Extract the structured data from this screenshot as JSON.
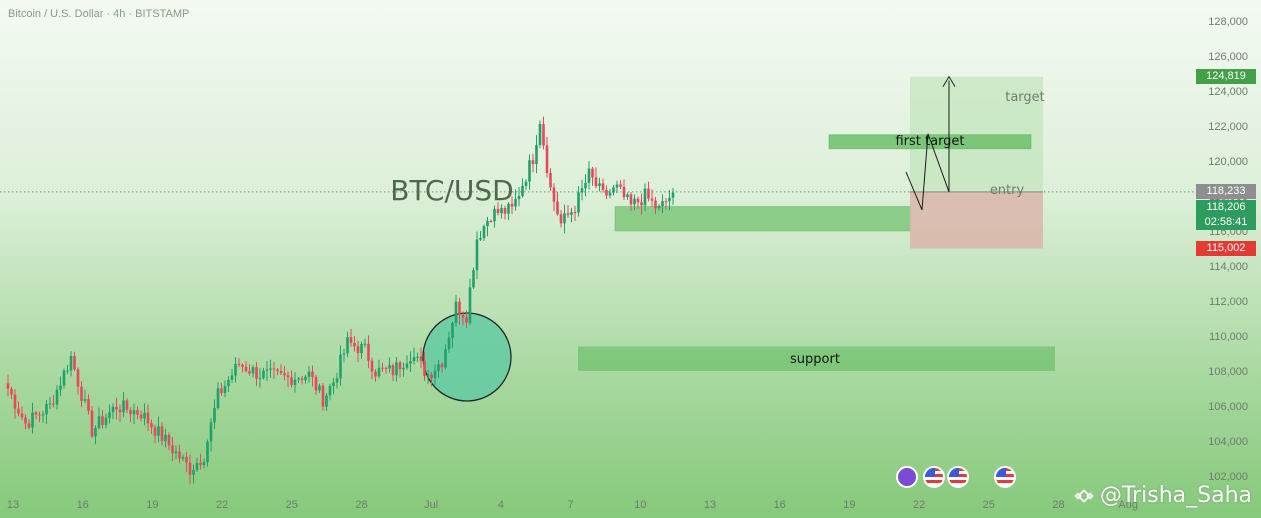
{
  "header": {
    "symbol_line": "Bitcoin / U.S. Dollar · 4h · BITSTAMP"
  },
  "annotations": {
    "big_label": "BTC/USD",
    "support_label": "support",
    "first_target_label": "first target",
    "target_label": "target",
    "entry_label": "entry"
  },
  "price_tags": {
    "target": {
      "text": "124,819",
      "color": "#43a047"
    },
    "current_price": "118,233",
    "last_price": "118,206",
    "countdown": "02:58:41",
    "stop": {
      "text": "115,002",
      "color": "#e53935"
    }
  },
  "watermark": {
    "text": "@Trisha_Saha"
  },
  "colors": {
    "up": "#22a06b",
    "down": "#e8485a",
    "zone": "#6cc06a",
    "stop_zone": "#d9b9ad"
  },
  "chart_data": {
    "type": "candlestick",
    "title": "Bitcoin / U.S. Dollar · 4h · BITSTAMP",
    "ylim": [
      102000,
      128000
    ],
    "y_ticks": [
      "128,000",
      "126,000",
      "124,000",
      "122,000",
      "120,000",
      "118,000",
      "116,000",
      "114,000",
      "112,000",
      "110,000",
      "108,000",
      "106,000",
      "104,000",
      "102,000"
    ],
    "x_ticks": [
      "13",
      "16",
      "19",
      "22",
      "25",
      "28",
      "Jul",
      "4",
      "7",
      "10",
      "13",
      "16",
      "19",
      "22",
      "25",
      "28",
      "Aug"
    ],
    "guide_points": [
      {
        "x": 0,
        "y": 107000
      },
      {
        "x": 5,
        "y": 105000
      },
      {
        "x": 12,
        "y": 106000
      },
      {
        "x": 18,
        "y": 108800
      },
      {
        "x": 24,
        "y": 104600
      },
      {
        "x": 31,
        "y": 106000
      },
      {
        "x": 38,
        "y": 105600
      },
      {
        "x": 45,
        "y": 104000
      },
      {
        "x": 52,
        "y": 102400
      },
      {
        "x": 56,
        "y": 103200
      },
      {
        "x": 60,
        "y": 106600
      },
      {
        "x": 66,
        "y": 108400
      },
      {
        "x": 72,
        "y": 107800
      },
      {
        "x": 80,
        "y": 107600
      },
      {
        "x": 86,
        "y": 107800
      },
      {
        "x": 90,
        "y": 106400
      },
      {
        "x": 93,
        "y": 107400
      },
      {
        "x": 97,
        "y": 109600
      },
      {
        "x": 102,
        "y": 109200
      },
      {
        "x": 105,
        "y": 108000
      },
      {
        "x": 110,
        "y": 108000
      },
      {
        "x": 115,
        "y": 109000
      },
      {
        "x": 120,
        "y": 107800
      },
      {
        "x": 124,
        "y": 108600
      },
      {
        "x": 128,
        "y": 111700
      },
      {
        "x": 131,
        "y": 111200
      },
      {
        "x": 134,
        "y": 115600
      },
      {
        "x": 138,
        "y": 117000
      },
      {
        "x": 144,
        "y": 117200
      },
      {
        "x": 150,
        "y": 120200
      },
      {
        "x": 152,
        "y": 122400
      },
      {
        "x": 155,
        "y": 118400
      },
      {
        "x": 158,
        "y": 116400
      },
      {
        "x": 162,
        "y": 117400
      },
      {
        "x": 166,
        "y": 119200
      },
      {
        "x": 170,
        "y": 118000
      },
      {
        "x": 174,
        "y": 118400
      },
      {
        "x": 178,
        "y": 117400
      },
      {
        "x": 182,
        "y": 118000
      },
      {
        "x": 186,
        "y": 117200
      },
      {
        "x": 190,
        "y": 118200
      }
    ],
    "levels": {
      "support": [
        108000,
        109400
      ],
      "first_target": [
        120700,
        121500
      ],
      "entry": 118233,
      "target": 124819,
      "stop": 115002,
      "consolidation_zone": [
        116000,
        117400
      ]
    }
  }
}
